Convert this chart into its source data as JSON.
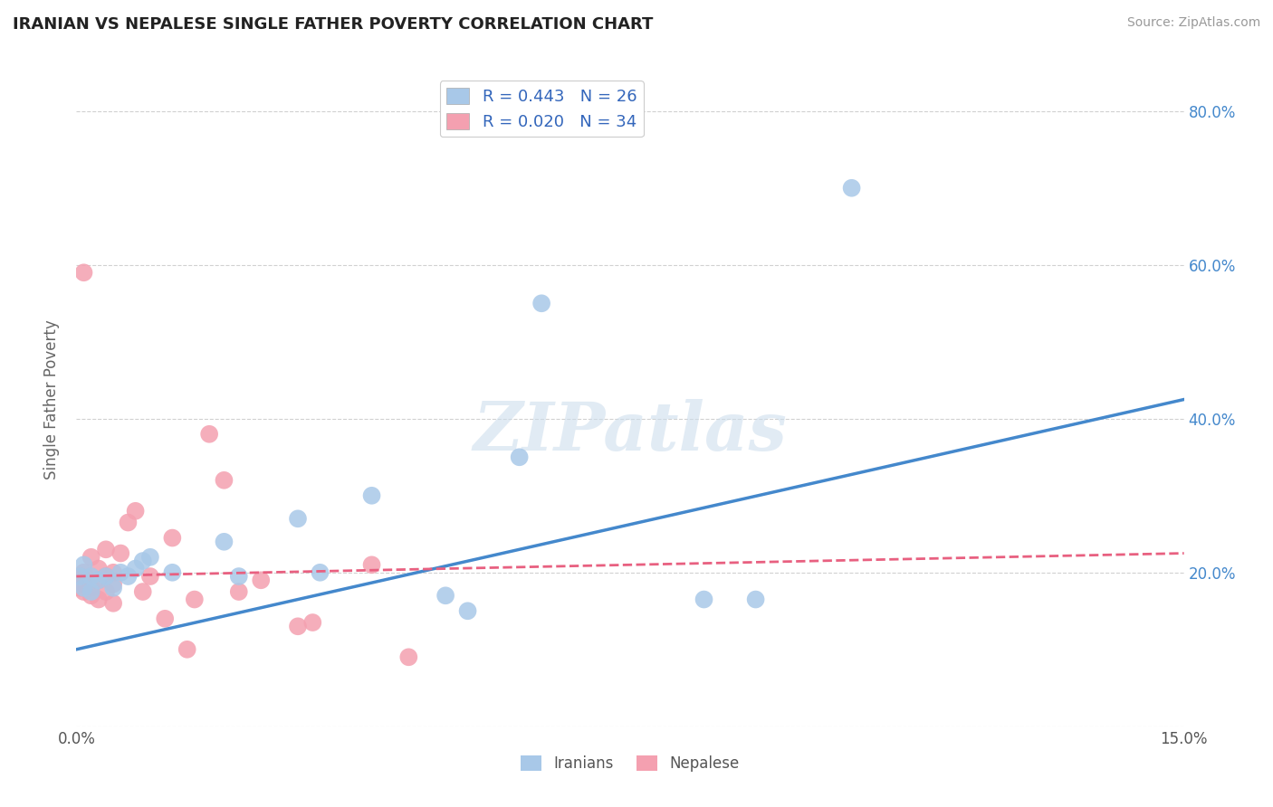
{
  "title": "IRANIAN VS NEPALESE SINGLE FATHER POVERTY CORRELATION CHART",
  "source": "Source: ZipAtlas.com",
  "ylabel": "Single Father Poverty",
  "xlim": [
    0.0,
    0.15
  ],
  "ylim": [
    0.0,
    0.85
  ],
  "xticks": [
    0.0,
    0.03,
    0.06,
    0.09,
    0.12,
    0.15
  ],
  "xtick_labels": [
    "0.0%",
    "",
    "",
    "",
    "",
    "15.0%"
  ],
  "yticks_right": [
    0.0,
    0.2,
    0.4,
    0.6,
    0.8
  ],
  "ytick_labels_right": [
    "",
    "20.0%",
    "40.0%",
    "60.0%",
    "80.0%"
  ],
  "iranian_R": 0.443,
  "iranian_N": 26,
  "nepalese_R": 0.02,
  "nepalese_N": 34,
  "iranians_color": "#A8C8E8",
  "nepalese_color": "#F4A0B0",
  "trend_iranian_color": "#4488CC",
  "trend_nepalese_color": "#E86080",
  "watermark": "ZIPatlas",
  "legend_iranian_label": "Iranians",
  "legend_nepalese_label": "Nepalese",
  "iranians_x": [
    0.0005,
    0.001,
    0.001,
    0.002,
    0.002,
    0.003,
    0.004,
    0.005,
    0.006,
    0.007,
    0.008,
    0.009,
    0.01,
    0.013,
    0.02,
    0.022,
    0.03,
    0.033,
    0.04,
    0.05,
    0.053,
    0.06,
    0.063,
    0.085,
    0.092,
    0.105
  ],
  "iranians_y": [
    0.195,
    0.18,
    0.21,
    0.175,
    0.195,
    0.19,
    0.195,
    0.18,
    0.2,
    0.195,
    0.205,
    0.215,
    0.22,
    0.2,
    0.24,
    0.195,
    0.27,
    0.2,
    0.3,
    0.17,
    0.15,
    0.35,
    0.55,
    0.165,
    0.165,
    0.7
  ],
  "nepalese_x": [
    0.0005,
    0.0005,
    0.001,
    0.001,
    0.001,
    0.002,
    0.002,
    0.002,
    0.003,
    0.003,
    0.003,
    0.004,
    0.004,
    0.004,
    0.005,
    0.005,
    0.005,
    0.006,
    0.007,
    0.008,
    0.009,
    0.01,
    0.012,
    0.013,
    0.015,
    0.016,
    0.018,
    0.02,
    0.022,
    0.025,
    0.03,
    0.032,
    0.04,
    0.045
  ],
  "nepalese_y": [
    0.195,
    0.18,
    0.175,
    0.185,
    0.2,
    0.17,
    0.18,
    0.22,
    0.165,
    0.19,
    0.205,
    0.175,
    0.195,
    0.23,
    0.16,
    0.185,
    0.2,
    0.225,
    0.265,
    0.28,
    0.175,
    0.195,
    0.14,
    0.245,
    0.1,
    0.165,
    0.38,
    0.32,
    0.175,
    0.19,
    0.13,
    0.135,
    0.21,
    0.09
  ],
  "nepalese_outlier_x": [
    0.001
  ],
  "nepalese_outlier_y": [
    0.59
  ],
  "trend_ir_x0": 0.0,
  "trend_ir_y0": 0.1,
  "trend_ir_x1": 0.15,
  "trend_ir_y1": 0.425,
  "trend_np_x0": 0.0,
  "trend_np_y0": 0.195,
  "trend_np_x1": 0.15,
  "trend_np_y1": 0.225
}
